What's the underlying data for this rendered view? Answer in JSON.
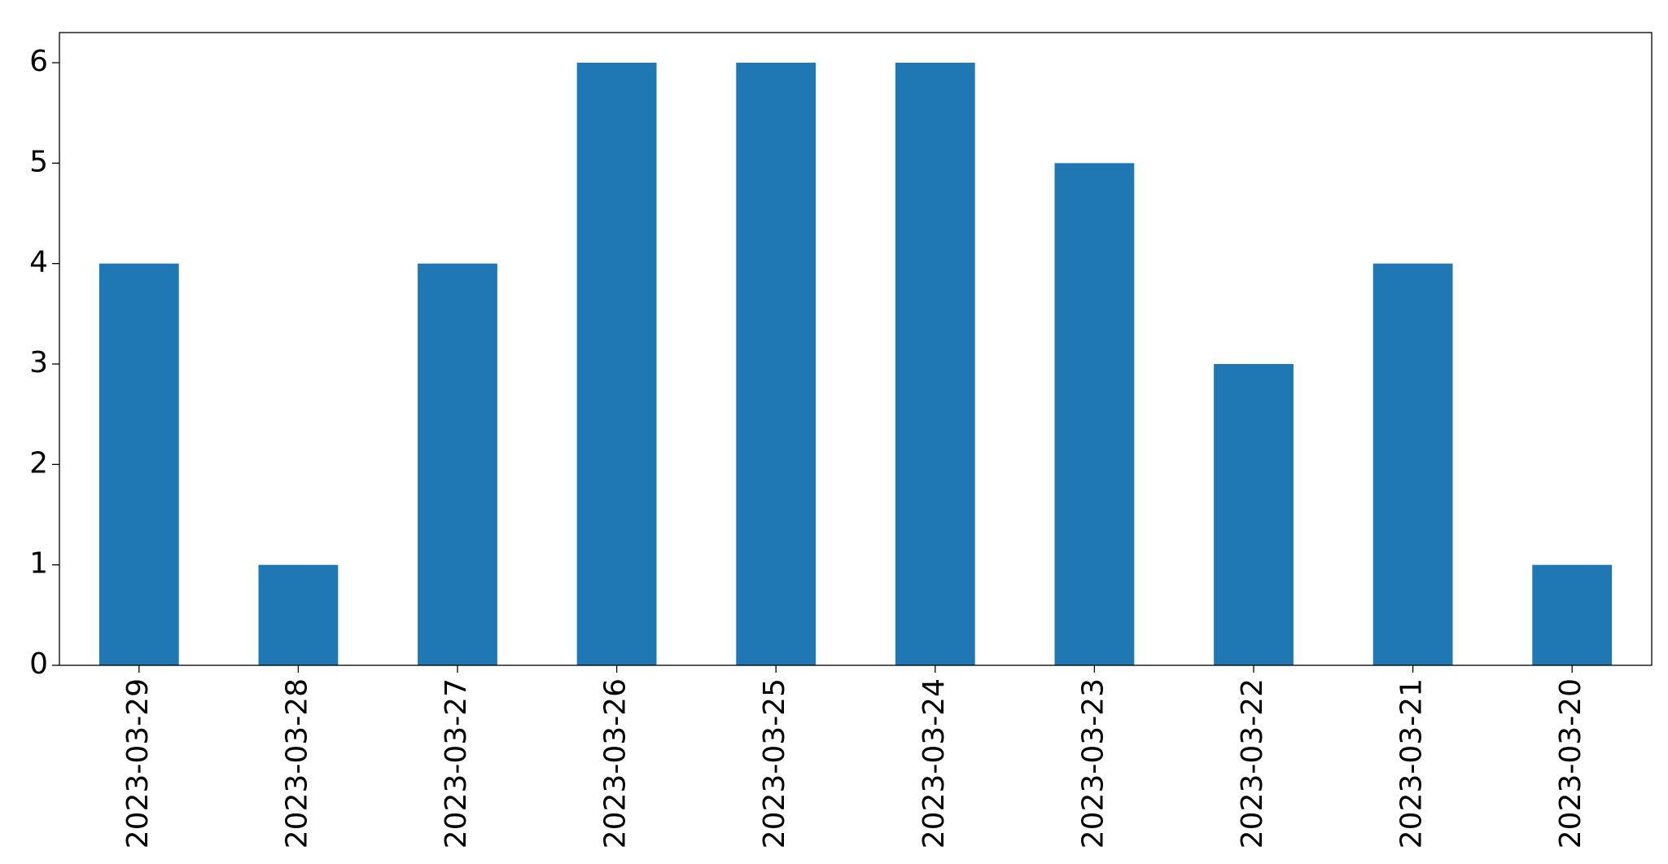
{
  "chart_data": {
    "type": "bar",
    "categories": [
      "2023-03-29",
      "2023-03-28",
      "2023-03-27",
      "2023-03-26",
      "2023-03-25",
      "2023-03-24",
      "2023-03-23",
      "2023-03-22",
      "2023-03-21",
      "2023-03-20"
    ],
    "values": [
      4,
      1,
      4,
      6,
      6,
      6,
      5,
      3,
      4,
      1
    ],
    "color": "#1f77b4",
    "ylim": [
      0,
      6.3
    ],
    "yticks": [
      0,
      1,
      2,
      3,
      4,
      5,
      6
    ],
    "grid": false
  }
}
